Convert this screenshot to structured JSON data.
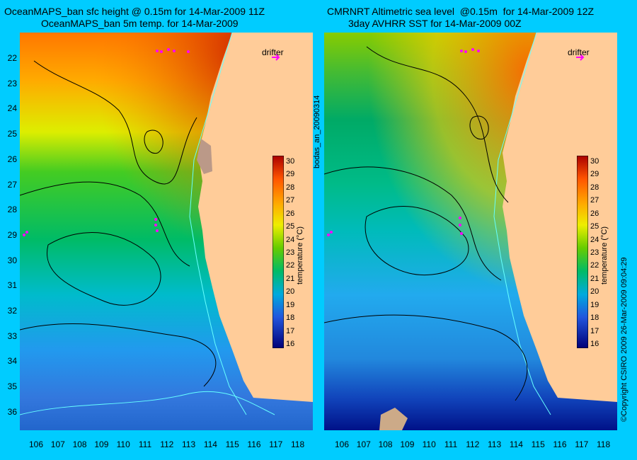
{
  "left_panel": {
    "title_line1": "OceanMAPS_ban sfc height @ 0.15m for 14-Mar-2009 11Z",
    "title_line2": "OceanMAPS_ban 5m temp. for 14-Mar-2009",
    "drifter_label": "drifter",
    "colorbar_label": "temperature (°C)"
  },
  "right_panel": {
    "title_line1": "CMRNRT Altimetric sea level  @0.15m  for 14-Mar-2009 12Z",
    "title_line2": "3day AVHRR SST for 14-Mar-2009 00Z",
    "drifter_label": "drifter",
    "colorbar_label": "temperature (°C)"
  },
  "side_labels": {
    "middle": "bodas_an_20090314",
    "right": "©Copyright CSIRO 2009   26-Mar-2009 09:04:29"
  },
  "axes": {
    "lat_ticks": [
      "22",
      "23",
      "24",
      "25",
      "26",
      "27",
      "28",
      "29",
      "30",
      "31",
      "32",
      "33",
      "34",
      "35",
      "36"
    ],
    "lon_ticks": [
      "106",
      "107",
      "108",
      "109",
      "110",
      "111",
      "112",
      "113",
      "114",
      "115",
      "116",
      "117",
      "118"
    ]
  },
  "colorbar": {
    "ticks": [
      "30",
      "29",
      "28",
      "27",
      "26",
      "25",
      "24",
      "23",
      "22",
      "21",
      "20",
      "19",
      "18",
      "17",
      "16"
    ],
    "range": [
      16,
      30
    ],
    "colors": [
      "#ff0000",
      "#ff9900",
      "#ffee00",
      "#77dd00",
      "#00bb44",
      "#00bbcc",
      "#3399ff",
      "#1144cc",
      "#000088"
    ]
  },
  "colors": {
    "background": "#00ccff",
    "land": "#ffcc99",
    "contour": "#000000",
    "bathymetry": "#66ffff",
    "drifter": "#ff00ff"
  }
}
